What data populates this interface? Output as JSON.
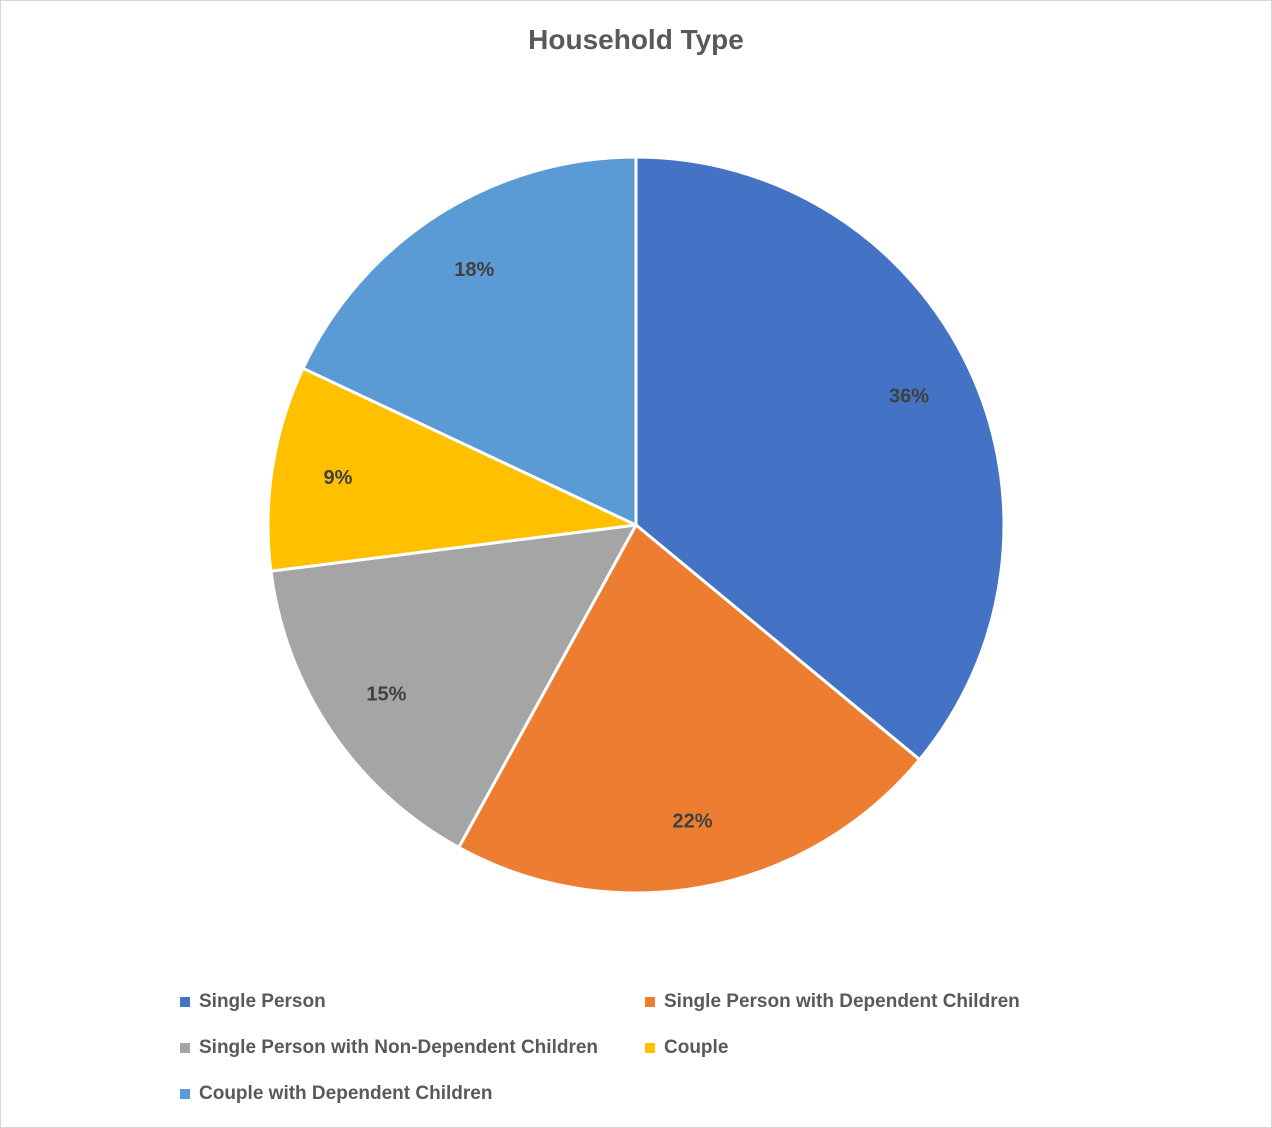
{
  "chart_data": {
    "type": "pie",
    "title": "Household Type",
    "categories": [
      "Single Person",
      "Single Person with Dependent Children",
      "Single Person with Non-Dependent Children",
      "Couple",
      "Couple with Dependent Children"
    ],
    "values": [
      36,
      22,
      15,
      9,
      18
    ],
    "labels": [
      "36%",
      "22%",
      "15%",
      "9%",
      "18%"
    ],
    "colors": [
      "#4472C4",
      "#ED7D31",
      "#A5A5A5",
      "#FFC000",
      "#5B9BD5"
    ],
    "legend_position": "bottom",
    "start_angle_deg": 0,
    "direction": "clockwise"
  }
}
